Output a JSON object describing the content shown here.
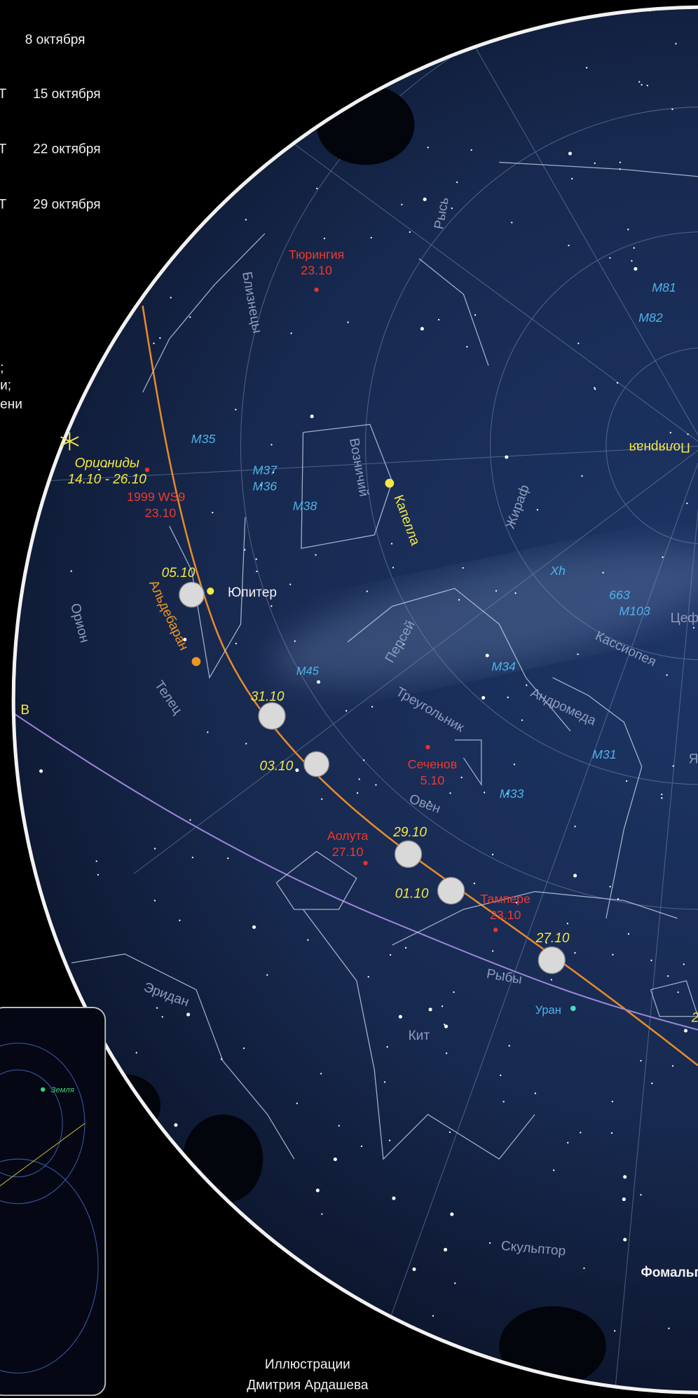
{
  "legend_dates": [
    "8 октября",
    "15 октября",
    "22 октября",
    "29 октября"
  ],
  "legend_marks": [
    "Т",
    "Т",
    "Т"
  ],
  "legend_fragments": [
    ";",
    "и;",
    "ени"
  ],
  "labels": [
    "Тюрингия",
    "23.10",
    "Рысь",
    "Близнецы",
    "M81",
    "M82",
    "Полярная",
    "M35",
    "Ориониды",
    "14.10 - 26.10",
    "1999 WS9",
    "23.10",
    "M37",
    "M36",
    "M38",
    "Возничий",
    "Капелла",
    "Жираф",
    "Xh",
    "663",
    "M103",
    "Цеф",
    "05.10",
    "Юпитер",
    "Альдебаран",
    "Орион",
    "Персей",
    "Кассиопея",
    "M34",
    "M45",
    "Телец",
    "31.10",
    "Андромеда",
    "Треугольник",
    "M31",
    "В",
    "03.10",
    "Сеченов",
    "5.10",
    "M33",
    "Овен",
    "Аолута",
    "27.10",
    "29.10",
    "01.10",
    "Тампере",
    "23.10",
    "27.10",
    "Рыбы",
    "Уран",
    "Эридан",
    "Кит",
    "Скульптор",
    "Фомальг",
    "Я",
    "2",
    "Земля"
  ],
  "credit": [
    "Иллюстрации",
    "Дмитрия Ардашева"
  ]
}
